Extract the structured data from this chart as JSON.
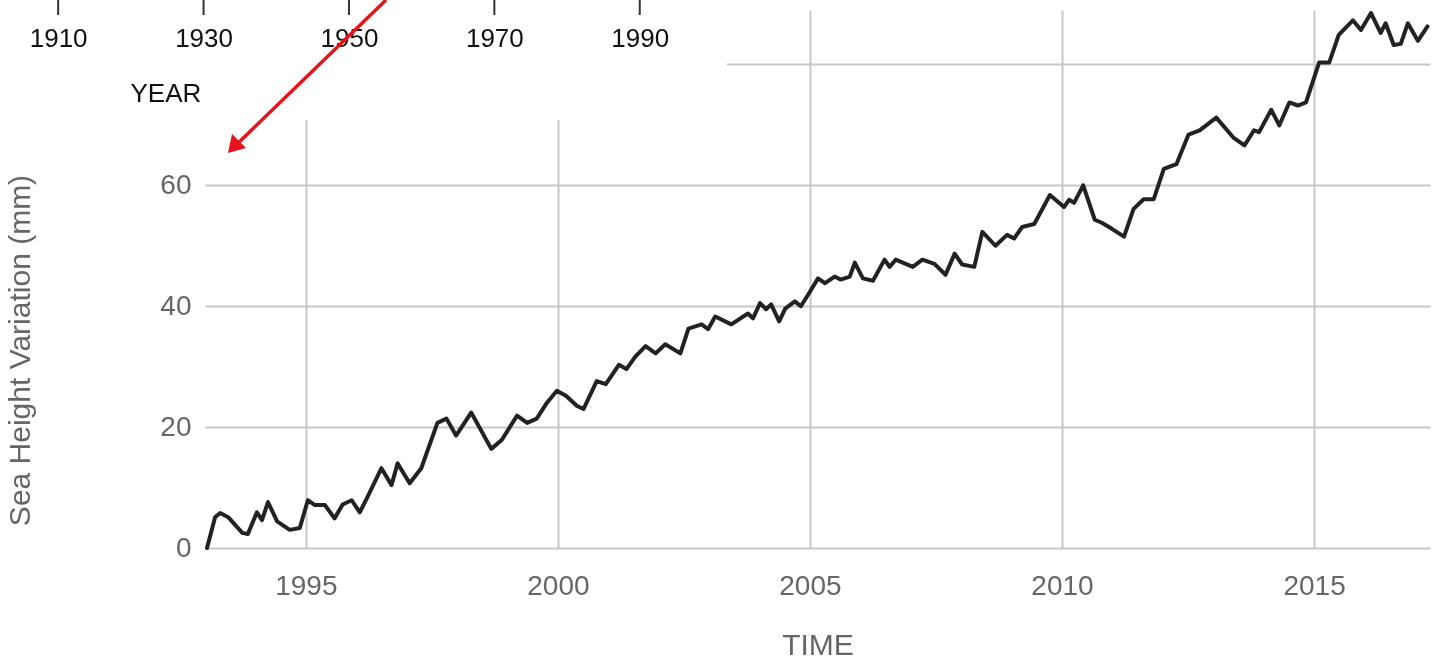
{
  "chart_data": {
    "type": "line",
    "x2label": "YEAR",
    "x2lim": [
      1902,
      2098.7
    ],
    "x2ticks": [
      1910,
      1930,
      1950,
      1970,
      1990
    ],
    "xlabel": "TIME",
    "ylabel": "Sea Height Variation (mm)",
    "xlim": [
      1993,
      2017.3
    ],
    "ylim": [
      0,
      89
    ],
    "xticks": [
      1995,
      2000,
      2005,
      2010,
      2015
    ],
    "yticks": [
      0,
      20,
      40,
      60,
      {
        "value": 80,
        "label": null
      }
    ],
    "grid": true,
    "series": [
      {
        "color": "#222222",
        "x": [
          1993.04,
          1993.2,
          1993.3,
          1993.46,
          1993.74,
          1993.85,
          1994.03,
          1994.13,
          1994.25,
          1994.43,
          1994.68,
          1994.88,
          1995.04,
          1995.18,
          1995.38,
          1995.57,
          1995.73,
          1995.91,
          1996.07,
          1996.21,
          1996.5,
          1996.7,
          1996.82,
          1997.06,
          1997.29,
          1997.61,
          1997.79,
          1997.98,
          1998.28,
          1998.68,
          1998.89,
          1999.19,
          1999.39,
          1999.58,
          1999.78,
          1999.98,
          2000.16,
          2000.38,
          2000.51,
          2000.77,
          2000.95,
          2001.21,
          2001.36,
          2001.54,
          2001.74,
          2001.94,
          2002.13,
          2002.43,
          2002.59,
          2002.85,
          2002.98,
          2003.12,
          2003.44,
          2003.77,
          2003.87,
          2004.01,
          2004.13,
          2004.23,
          2004.39,
          2004.51,
          2004.7,
          2004.82,
          2005,
          2005.16,
          2005.3,
          2005.49,
          2005.61,
          2005.79,
          2005.89,
          2006.05,
          2006.25,
          2006.48,
          2006.58,
          2006.7,
          2007.04,
          2007.23,
          2007.47,
          2007.69,
          2007.87,
          2008.02,
          2008.26,
          2008.42,
          2008.68,
          2008.91,
          2009.05,
          2009.21,
          2009.45,
          2009.76,
          2010.04,
          2010.14,
          2010.24,
          2010.42,
          2010.65,
          2010.79,
          2010.99,
          2011.23,
          2011.42,
          2011.62,
          2011.82,
          2012.02,
          2012.27,
          2012.51,
          2012.73,
          2013.06,
          2013.4,
          2013.62,
          2013.81,
          2013.91,
          2014.15,
          2014.31,
          2014.51,
          2014.68,
          2014.84,
          2015.1,
          2015.3,
          2015.49,
          2015.77,
          2015.93,
          2016.13,
          2016.32,
          2016.42,
          2016.58,
          2016.72,
          2016.86,
          2017.06,
          2017.25
        ],
        "values": [
          0,
          5.1,
          5.8,
          5.1,
          2.5,
          2.3,
          5.9,
          4.6,
          7.6,
          4.4,
          3,
          3.3,
          7.9,
          7.1,
          7.1,
          4.9,
          7.2,
          7.9,
          5.9,
          8.2,
          13.2,
          10.4,
          14,
          10.7,
          13.2,
          20.7,
          21.4,
          18.6,
          22.4,
          16.4,
          17.9,
          21.9,
          20.7,
          21.4,
          24,
          26,
          25.2,
          23.5,
          23,
          27.6,
          27.1,
          30.3,
          29.6,
          31.7,
          33.4,
          32.2,
          33.7,
          32.2,
          36.3,
          37,
          36.2,
          38.3,
          37,
          38.8,
          38,
          40.5,
          39.5,
          40.3,
          37.5,
          39.6,
          40.8,
          40,
          42.4,
          44.6,
          43.8,
          44.9,
          44.4,
          44.9,
          47.2,
          44.6,
          44.2,
          47.7,
          46.5,
          47.7,
          46.5,
          47.7,
          47,
          45.2,
          48.7,
          46.9,
          46.5,
          52.3,
          50,
          51.8,
          51.2,
          53.1,
          53.6,
          58.4,
          56.4,
          57.6,
          57.1,
          60,
          54.3,
          53.8,
          52.8,
          51.5,
          56.1,
          57.7,
          57.7,
          62.7,
          63.5,
          68.4,
          69.1,
          71.2,
          67.9,
          66.6,
          69.1,
          68.8,
          72.5,
          69.9,
          73.7,
          73.2,
          73.7,
          80.3,
          80.3,
          84.9,
          87.3,
          85.7,
          88.5,
          85.2,
          86.8,
          83.2,
          83.4,
          86.8,
          83.9,
          86.3
        ]
      }
    ]
  }
}
